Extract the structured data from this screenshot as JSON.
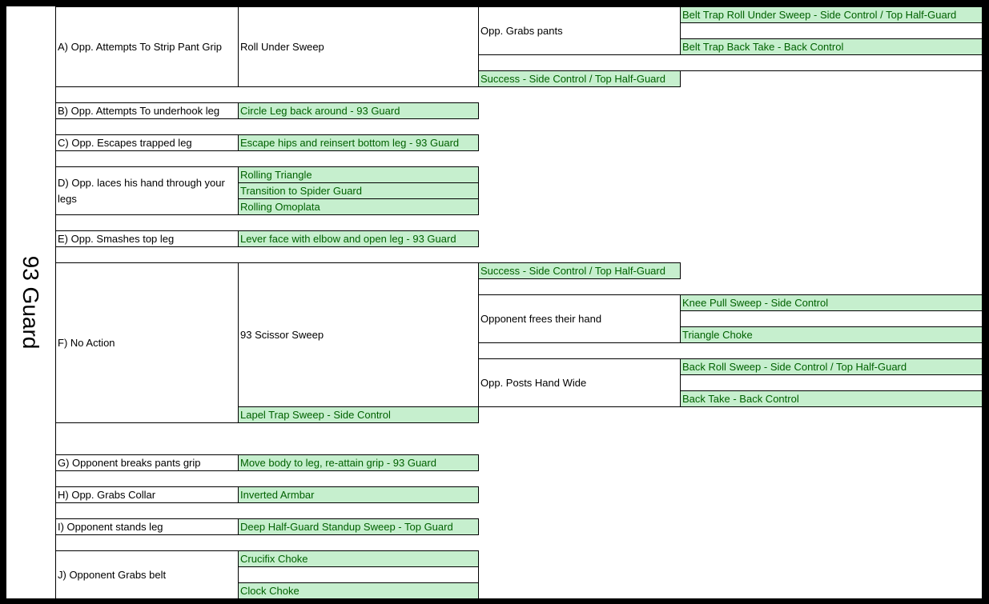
{
  "title": "93 Guard",
  "colors": {
    "success_fill": "#c6efce",
    "success_text": "#006100",
    "frame": "#000000"
  },
  "sections": {
    "A": {
      "trigger": "A) Opp. Attempts To Strip Pant Grip",
      "technique": "Roll Under Sweep",
      "branch": "Opp. Grabs pants",
      "branch_outcomes": [
        "Belt Trap Roll Under Sweep - Side Control / Top Half-Guard",
        "Belt Trap Back Take - Back Control"
      ],
      "success": "Success - Side Control / Top Half-Guard"
    },
    "B": {
      "trigger": "B) Opp. Attempts To underhook leg",
      "response": "Circle Leg back around - 93 Guard"
    },
    "C": {
      "trigger": "C) Opp. Escapes trapped leg",
      "response": "Escape hips and reinsert bottom leg - 93 Guard"
    },
    "D": {
      "trigger": "D) Opp. laces his hand through your legs",
      "responses": [
        "Rolling Triangle",
        "Transition to Spider Guard",
        "Rolling Omoplata"
      ]
    },
    "E": {
      "trigger": "E) Opp. Smashes top leg",
      "response": "Lever face with elbow and open leg - 93 Guard"
    },
    "F": {
      "trigger": "F) No Action",
      "technique": "93 Scissor Sweep",
      "success": "Success - Side Control / Top Half-Guard",
      "branch1": "Opponent frees their hand",
      "branch1_outcomes": [
        "Knee Pull Sweep - Side Control",
        "Triangle Choke"
      ],
      "branch2": "Opp. Posts Hand Wide",
      "branch2_outcomes": [
        "Back Roll Sweep - Side Control / Top Half-Guard",
        "Back Take - Back Control"
      ],
      "alternate": "Lapel Trap Sweep - Side Control"
    },
    "G": {
      "trigger": "G) Opponent breaks pants grip",
      "response": "Move body to leg, re-attain grip - 93 Guard"
    },
    "H": {
      "trigger": "H) Opp. Grabs Collar",
      "response": "Inverted Armbar"
    },
    "I": {
      "trigger": "I) Opponent stands leg",
      "response": "Deep Half-Guard Standup Sweep - Top Guard"
    },
    "J": {
      "trigger": "J) Opponent Grabs belt",
      "responses": [
        "Crucifix Choke",
        "Clock Choke"
      ]
    }
  }
}
